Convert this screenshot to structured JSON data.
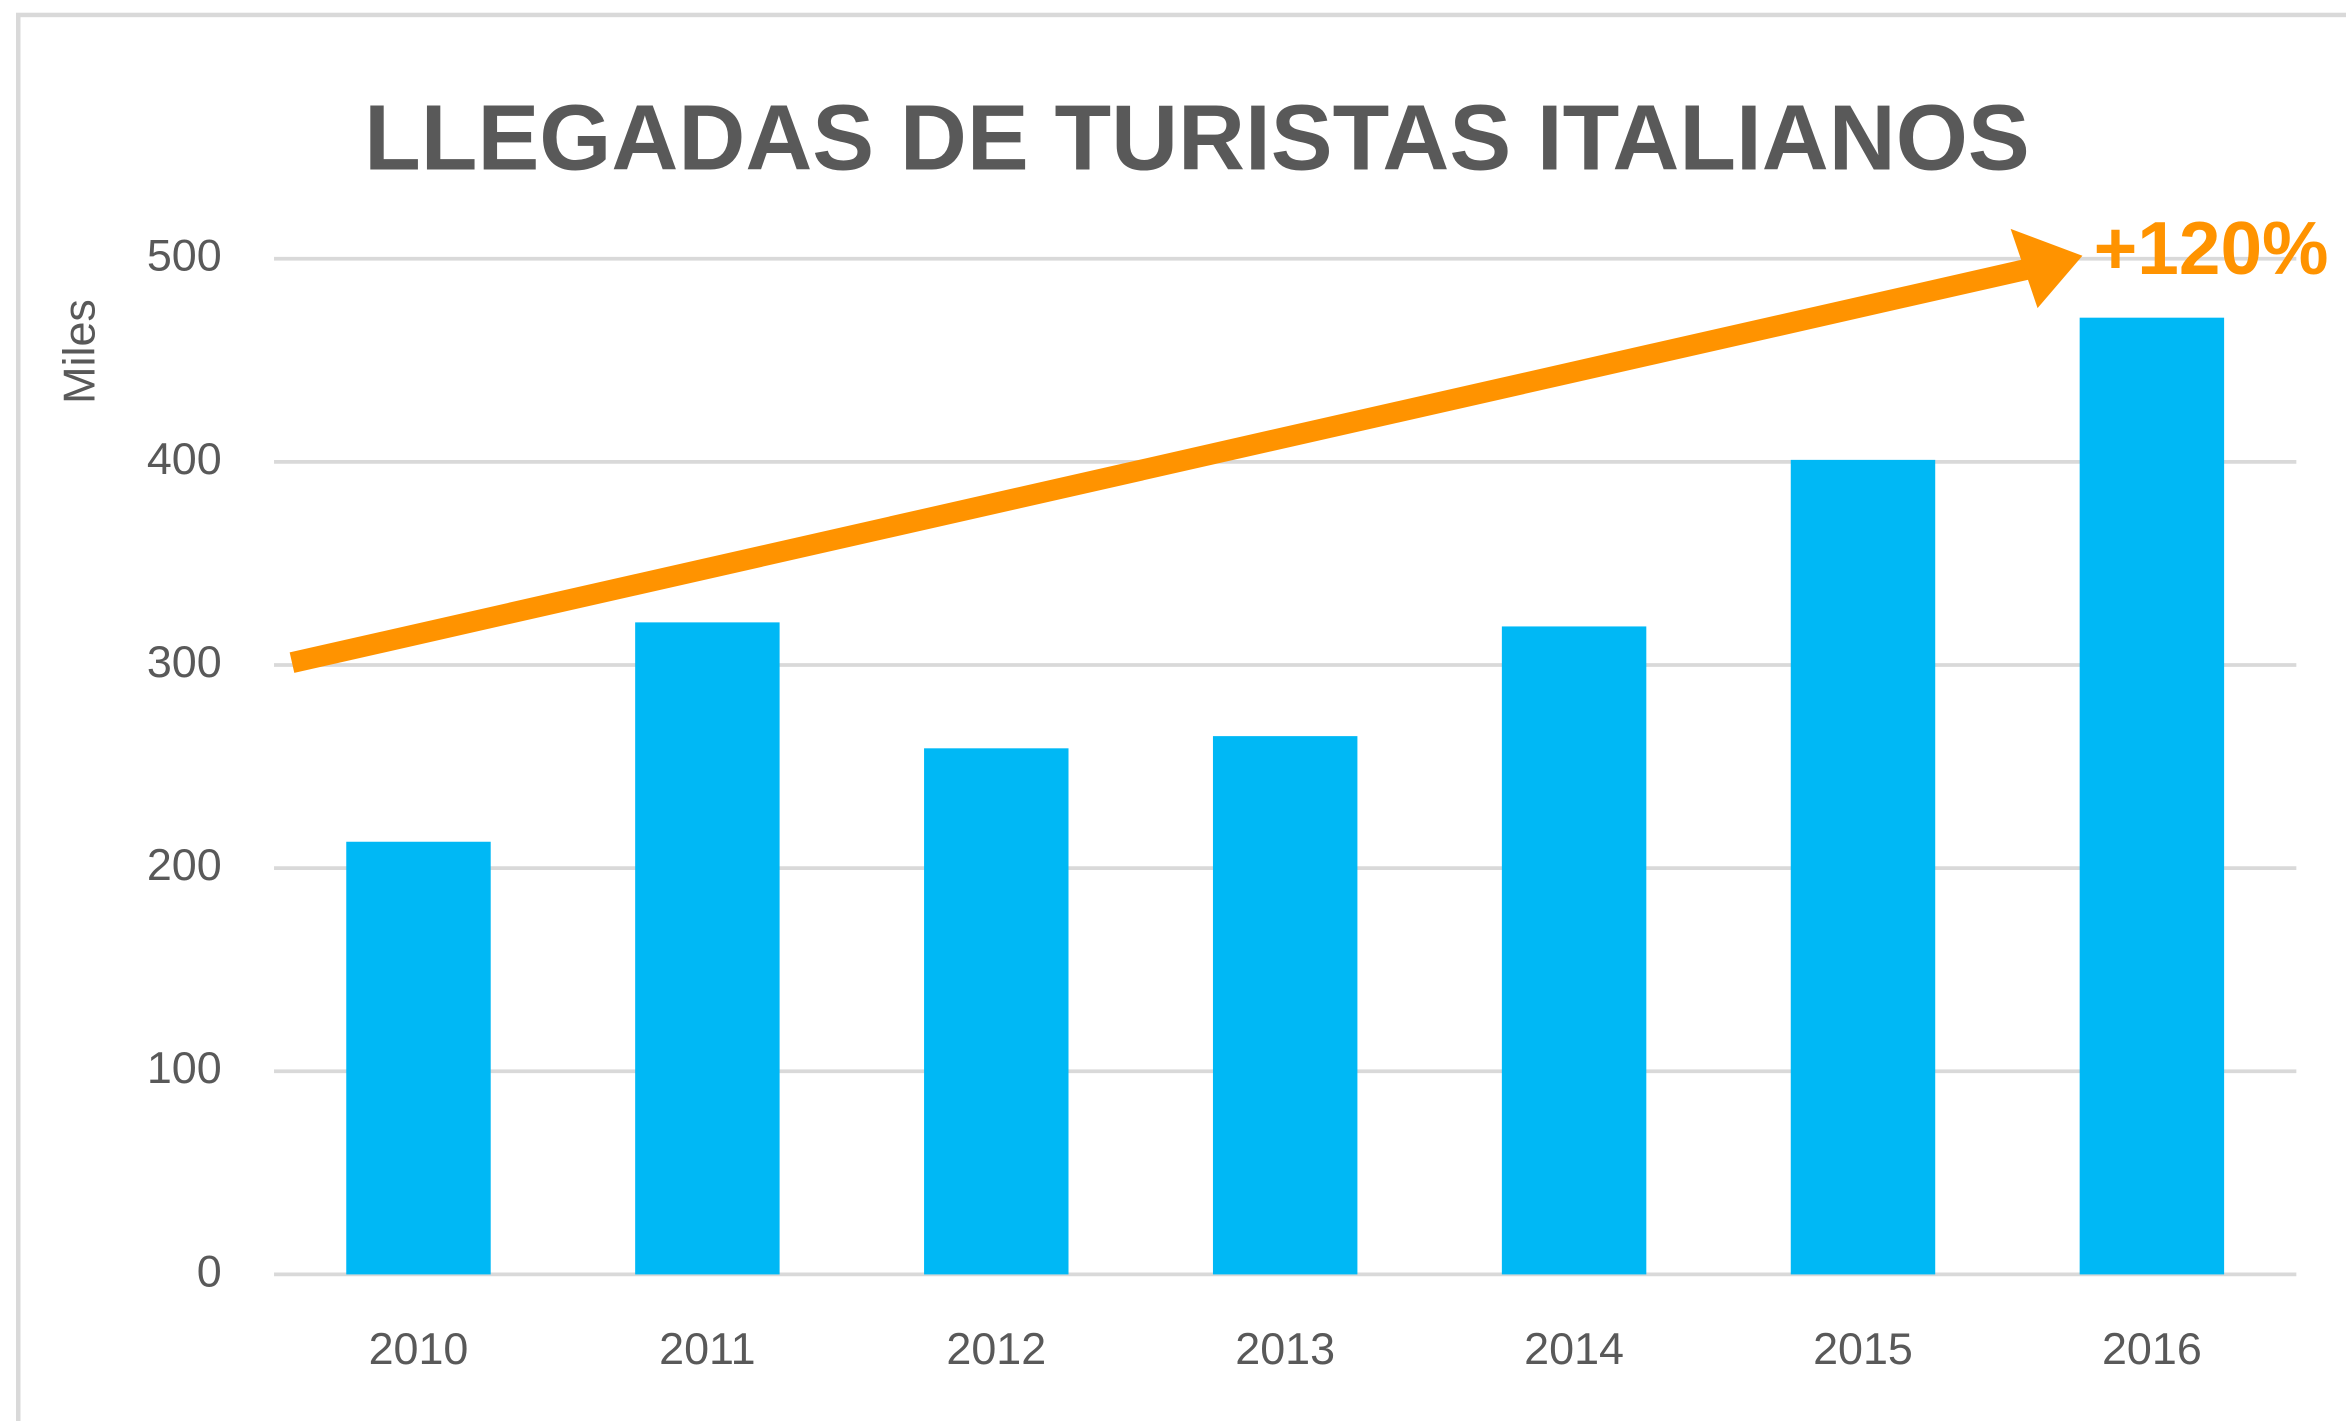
{
  "chart_data": {
    "type": "bar",
    "title": "LLEGADAS DE TURISTAS ITALIANOS",
    "y_label": "Miles",
    "annotation": "+120%",
    "categories": [
      "2010",
      "2011",
      "2012",
      "2013",
      "2014",
      "2015",
      "2016"
    ],
    "values": [
      213,
      321,
      259,
      265,
      319,
      401,
      471
    ],
    "color": "#00b8f5",
    "ylim": [
      0,
      500
    ],
    "yticks": [
      0,
      100,
      200,
      300,
      400,
      500
    ],
    "grid": true
  }
}
